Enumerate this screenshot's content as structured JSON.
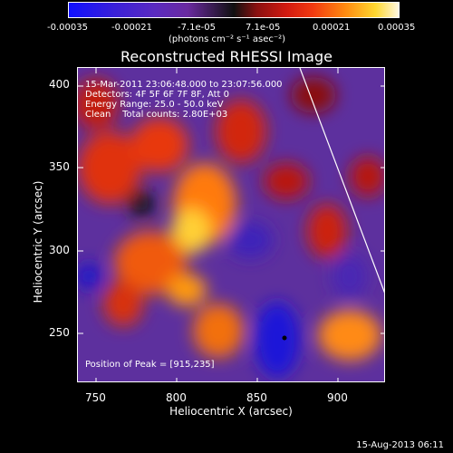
{
  "colorbar": {
    "ticks": [
      "-0.00035",
      "-0.00021",
      "-7.1e-05",
      "7.1e-05",
      "0.00021",
      "0.00035"
    ],
    "unit": "(photons cm⁻² s⁻¹ asec⁻²)"
  },
  "plot": {
    "title": "Reconstructed RHESSI Image",
    "x_title": "Heliocentric X (arcsec)",
    "y_title": "Heliocentric Y (arcsec)",
    "x_ticks": [
      "750",
      "800",
      "850",
      "900"
    ],
    "y_ticks": [
      "400",
      "350",
      "300",
      "250"
    ],
    "info_lines": [
      "15-Mar-2011 23:06:48.000 to 23:07:56.000",
      "Detectors: 4F 5F 6F 7F 8F, Att 0",
      "Energy Range: 25.0 - 50.0 keV",
      "Clean    Total counts: 2.80E+03"
    ],
    "peak_text": "Position of Peak = [915,235]"
  },
  "footer": {
    "date": "15-Aug-2013 06:11"
  }
}
